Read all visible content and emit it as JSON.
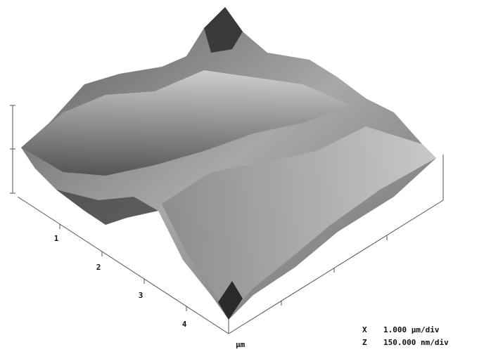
{
  "axis": {
    "ticks": [
      "1",
      "2",
      "3",
      "4"
    ],
    "unit": "µm"
  },
  "scale": [
    {
      "axis": "X",
      "value": "1.000 µm/div"
    },
    {
      "axis": "Z",
      "value": "150.000 nm/div"
    }
  ]
}
